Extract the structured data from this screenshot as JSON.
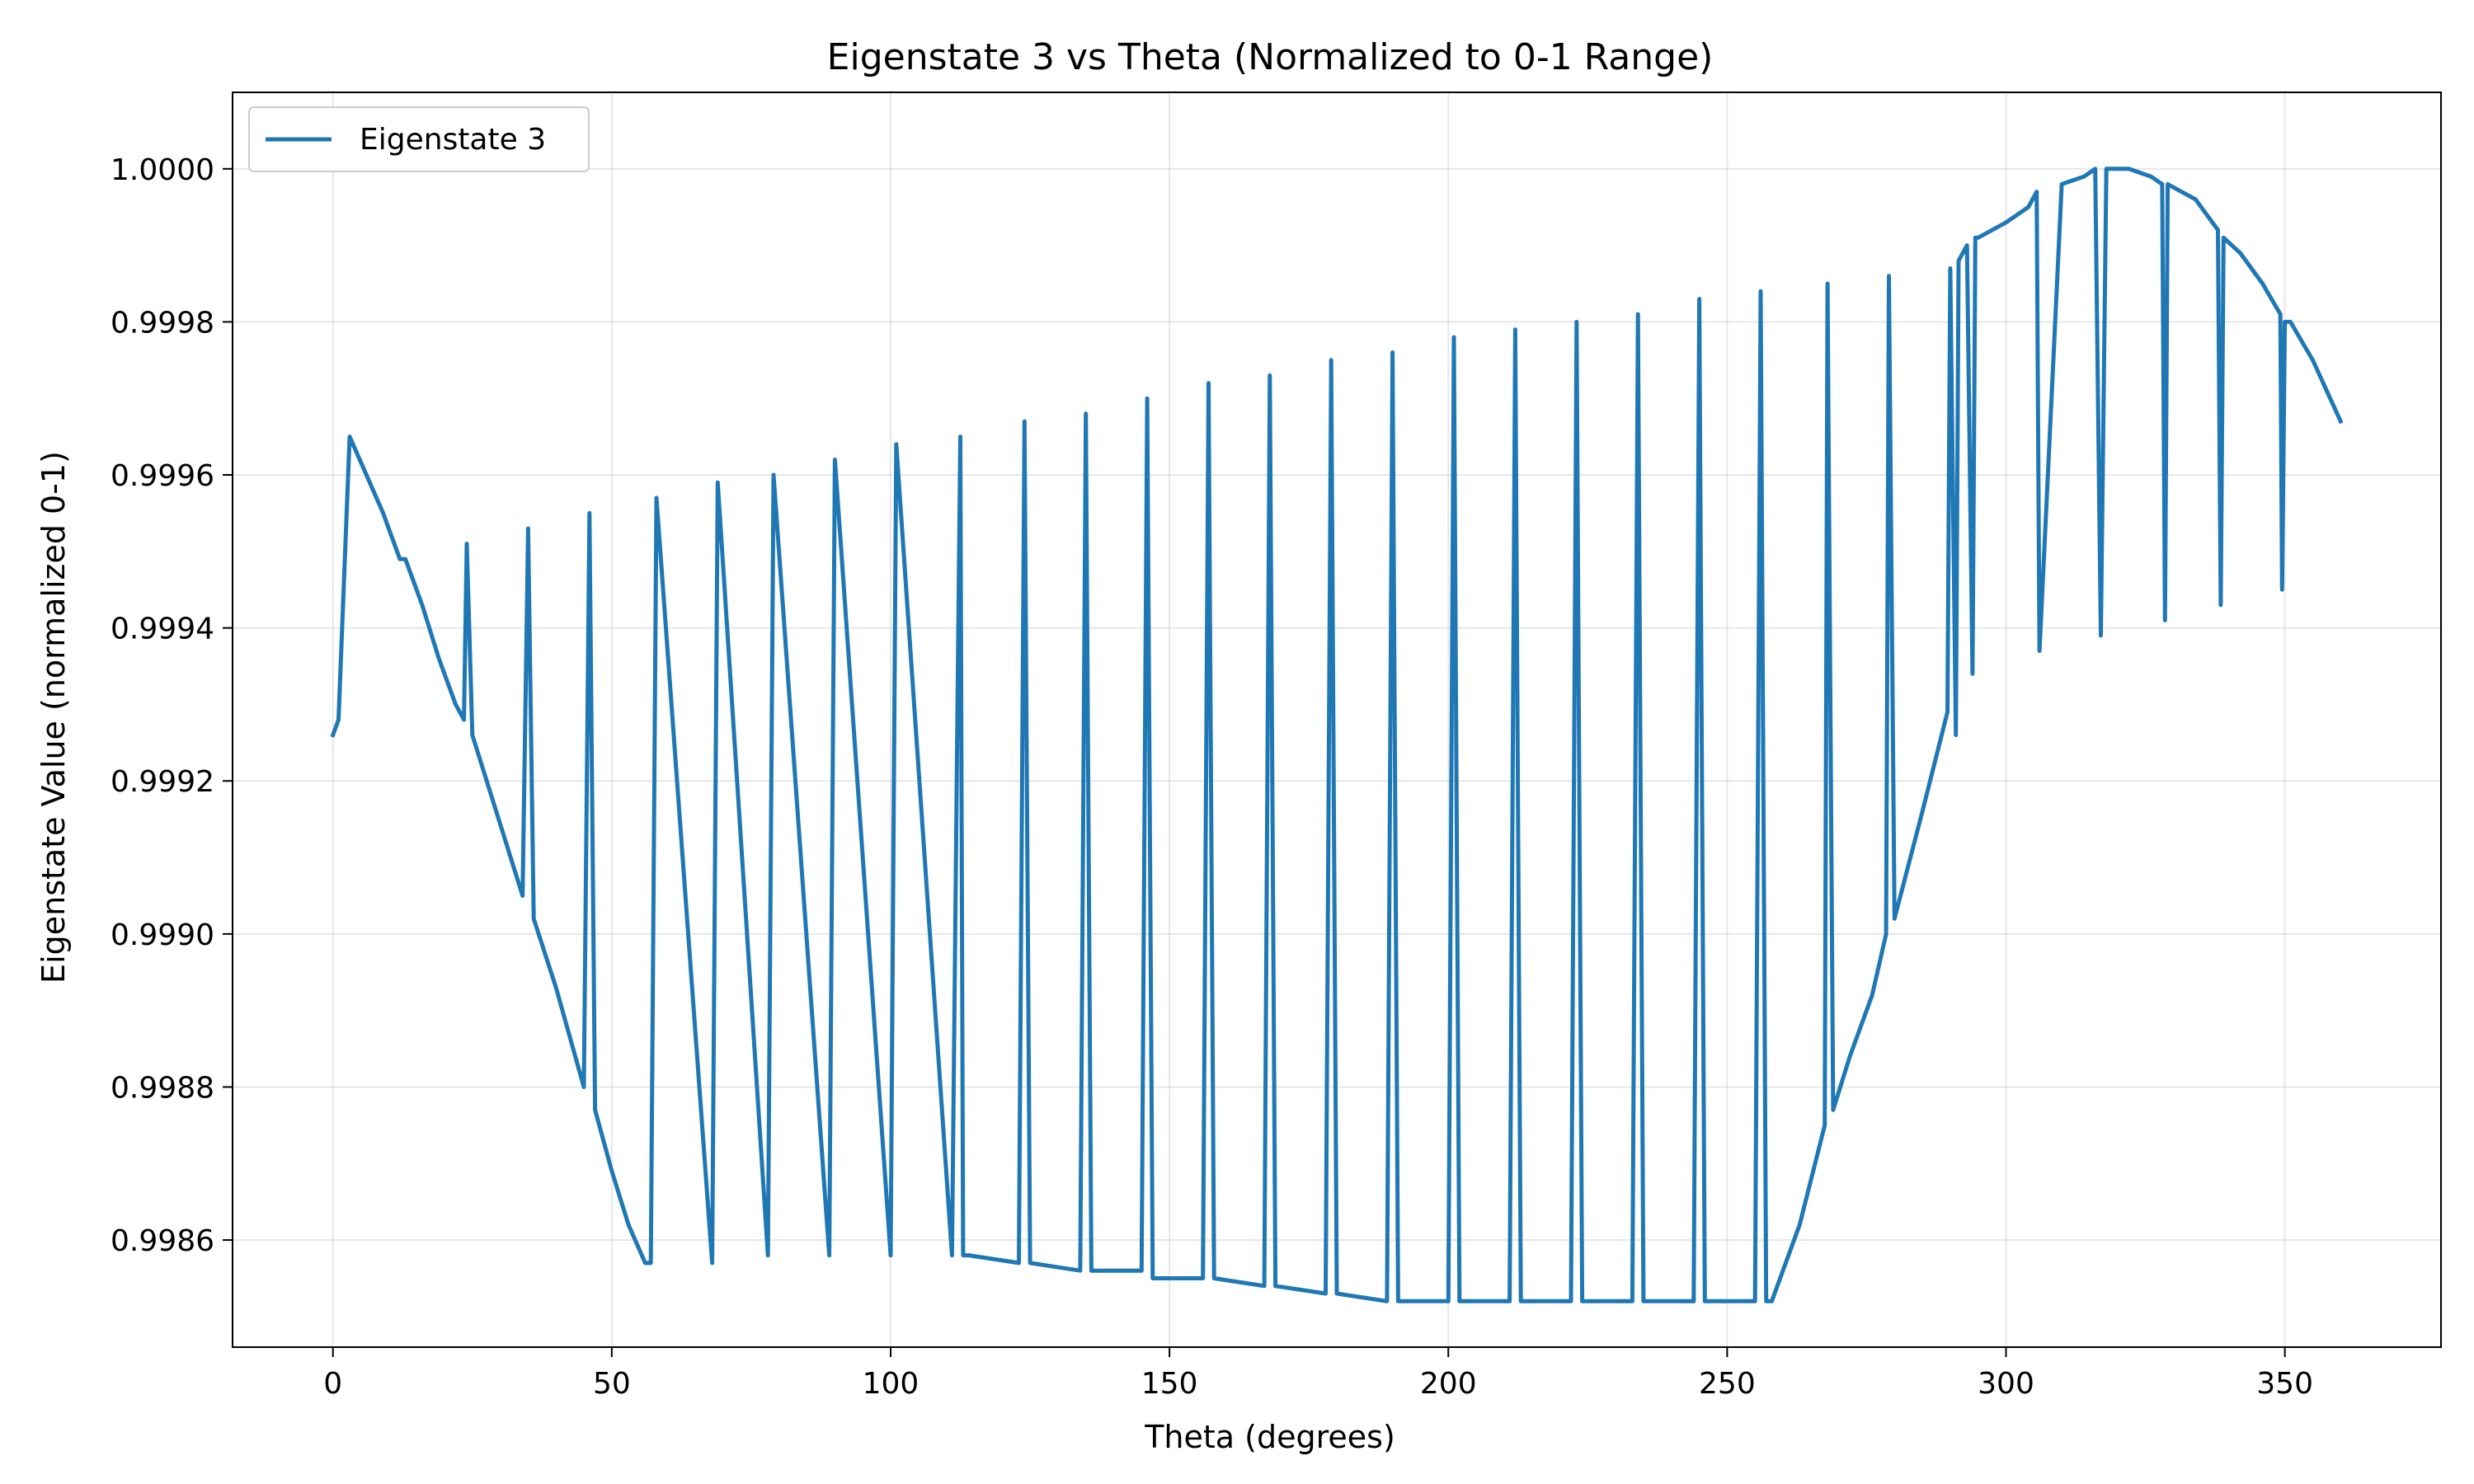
{
  "chart_data": {
    "type": "line",
    "title": "Eigenstate 3 vs Theta (Normalized to 0-1 Range)",
    "xlabel": "Theta (degrees)",
    "ylabel": "Eigenstate Value (normalized 0-1)",
    "xlim": [
      -18,
      378
    ],
    "ylim": [
      0.99846,
      1.0001
    ],
    "xticks": [
      0,
      50,
      100,
      150,
      200,
      250,
      300,
      350
    ],
    "yticks": [
      0.9986,
      0.9988,
      0.999,
      0.9992,
      0.9994,
      0.9996,
      0.9998,
      1.0
    ],
    "ytick_labels": [
      "0.9986",
      "0.9988",
      "0.9990",
      "0.9992",
      "0.9994",
      "0.9996",
      "0.9998",
      "1.0000"
    ],
    "grid": true,
    "legend_position": "top-left",
    "series": [
      {
        "name": "Eigenstate 3",
        "color": "#1f77b4",
        "x": [
          0,
          1,
          3,
          6,
          9,
          12,
          13,
          16,
          19,
          22,
          23.5,
          24,
          25,
          28,
          31,
          34,
          35,
          36,
          40,
          45,
          46,
          47,
          50,
          53,
          56,
          57,
          58,
          68,
          69,
          78,
          79,
          89,
          90,
          100,
          101,
          111,
          112,
          112.5,
          113,
          114,
          123,
          124,
          125,
          134,
          135,
          136,
          145,
          146,
          147,
          156,
          157,
          158,
          167,
          168,
          169,
          178,
          179,
          180,
          189,
          190,
          191,
          200,
          201,
          202,
          211,
          212,
          213,
          222,
          223,
          224,
          233,
          234,
          235,
          244,
          245,
          246,
          255,
          256,
          257,
          258,
          263,
          267.5,
          268,
          269,
          272,
          276,
          278.5,
          279,
          280,
          285,
          289.5,
          290,
          291,
          291.5,
          293,
          294,
          294.5,
          295,
          300,
          304,
          305.5,
          306,
          310,
          314,
          316,
          317,
          318,
          322,
          326,
          328,
          328.5,
          329,
          334,
          338,
          338.5,
          339,
          342,
          346,
          349.2,
          349.5,
          350,
          351,
          355,
          360
        ],
        "y": [
          0.99926,
          0.99928,
          0.99965,
          0.9996,
          0.99955,
          0.99949,
          0.99949,
          0.99943,
          0.99936,
          0.9993,
          0.99928,
          0.99951,
          0.99926,
          0.99919,
          0.99912,
          0.99905,
          0.99953,
          0.99902,
          0.99893,
          0.9988,
          0.99955,
          0.99877,
          0.99869,
          0.99862,
          0.99857,
          0.99857,
          0.99957,
          0.99857,
          0.99959,
          0.99858,
          0.9996,
          0.99858,
          0.99962,
          0.99858,
          0.99964,
          0.99858,
          0.9993,
          0.99965,
          0.99858,
          0.99858,
          0.99857,
          0.99967,
          0.99857,
          0.99856,
          0.99968,
          0.99856,
          0.99856,
          0.9997,
          0.99855,
          0.99855,
          0.99972,
          0.99855,
          0.99854,
          0.99973,
          0.99854,
          0.99853,
          0.99975,
          0.99853,
          0.99852,
          0.99976,
          0.99852,
          0.99852,
          0.99978,
          0.99852,
          0.99852,
          0.99979,
          0.99852,
          0.99852,
          0.9998,
          0.99852,
          0.99852,
          0.99981,
          0.99852,
          0.99852,
          0.99983,
          0.99852,
          0.99852,
          0.99984,
          0.99852,
          0.99852,
          0.99862,
          0.99875,
          0.99985,
          0.99877,
          0.99884,
          0.99892,
          0.999,
          0.99986,
          0.99902,
          0.99916,
          0.99929,
          0.99987,
          0.99926,
          0.99988,
          0.9999,
          0.99934,
          0.99991,
          0.99991,
          0.99993,
          0.99995,
          0.99997,
          0.99937,
          0.99998,
          0.99999,
          1.0,
          0.99939,
          1.0,
          1.0,
          0.99999,
          0.99998,
          0.99941,
          0.99998,
          0.99996,
          0.99992,
          0.99943,
          0.99991,
          0.99989,
          0.99985,
          0.99981,
          0.99945,
          0.9998,
          0.9998,
          0.99975,
          0.99967
        ]
      }
    ]
  }
}
